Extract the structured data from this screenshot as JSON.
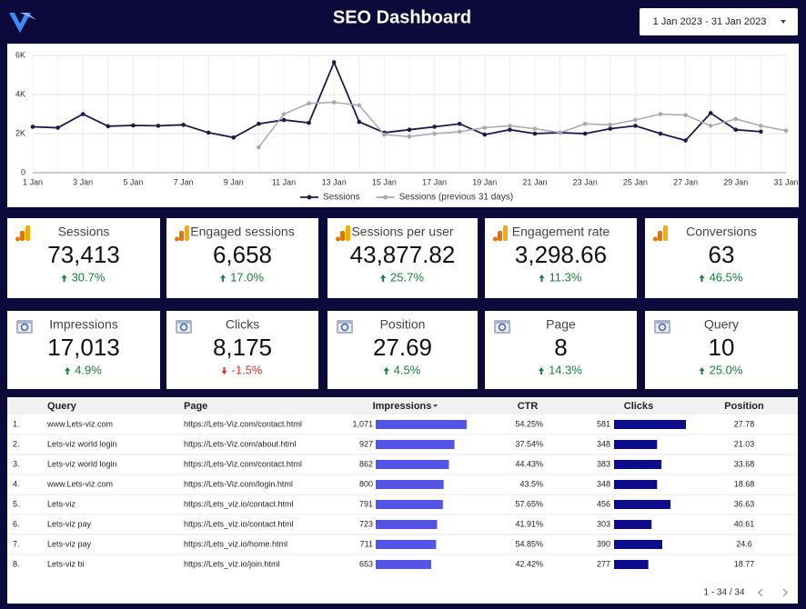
{
  "header": {
    "title": "SEO Dashboard",
    "date_range": "1 Jan 2023 - 31 Jan 2023"
  },
  "chart_data": {
    "type": "line",
    "x": [
      "1 Jan",
      null,
      "3 Jan",
      null,
      "5 Jan",
      null,
      "7 Jan",
      null,
      "9 Jan",
      null,
      "11 Jan",
      null,
      "13 Jan",
      null,
      "15 Jan",
      null,
      "17 Jan",
      null,
      "19 Jan",
      null,
      "21 Jan",
      null,
      "23 Jan",
      null,
      "25 Jan",
      null,
      "27 Jan",
      null,
      "29 Jan",
      null,
      "31 Jan"
    ],
    "series": [
      {
        "name": "Sessions",
        "color": "#1a1a4e",
        "values": [
          2350,
          2300,
          3000,
          2380,
          2420,
          2400,
          2450,
          2050,
          1800,
          2500,
          2700,
          2550,
          5650,
          2600,
          2050,
          2200,
          2350,
          2500,
          1950,
          2200,
          2000,
          2050,
          2000,
          2250,
          2400,
          2000,
          1650,
          3050,
          2200,
          2100,
          null
        ]
      },
      {
        "name": "Sessions (previous 31 days)",
        "color": "#a8a8b0",
        "values": [
          null,
          null,
          null,
          null,
          null,
          null,
          null,
          null,
          null,
          1300,
          3000,
          3550,
          3600,
          3450,
          1950,
          1850,
          2000,
          2100,
          2300,
          2400,
          2250,
          2050,
          2500,
          2450,
          2700,
          3000,
          2950,
          2400,
          2750,
          2400,
          2150
        ]
      }
    ],
    "ylim": [
      0,
      6000
    ],
    "yticks": [
      0,
      {
        "value": 2000,
        "label": "2K"
      },
      {
        "value": 4000,
        "label": "4K"
      },
      {
        "value": 6000,
        "label": "6K"
      }
    ],
    "grid": true,
    "legend": "bottom"
  },
  "kpis": [
    {
      "label": "Sessions",
      "value": "73,413",
      "change": "30.7%",
      "trend": "up",
      "source": "analytics"
    },
    {
      "label": "Engaged sessions",
      "value": "6,658",
      "change": "17.0%",
      "trend": "up",
      "source": "analytics"
    },
    {
      "label": "Sessions per user",
      "value": "43,877.82",
      "change": "25.7%",
      "trend": "up",
      "source": "analytics"
    },
    {
      "label": "Engagement rate",
      "value": "3,298.66",
      "change": "11.3%",
      "trend": "up",
      "source": "analytics"
    },
    {
      "label": "Conversions",
      "value": "63",
      "change": "46.5%",
      "trend": "up",
      "source": "analytics"
    },
    {
      "label": "Impressions",
      "value": "17,013",
      "change": "4.9%",
      "trend": "up",
      "source": "search"
    },
    {
      "label": "Clicks",
      "value": "8,175",
      "change": "-1.5%",
      "trend": "down",
      "source": "search"
    },
    {
      "label": "Position",
      "value": "27.69",
      "change": "4.5%",
      "trend": "up",
      "source": "search"
    },
    {
      "label": "Page",
      "value": "8",
      "change": "14.3%",
      "trend": "up",
      "source": "search"
    },
    {
      "label": "Query",
      "value": "10",
      "change": "25.0%",
      "trend": "up",
      "source": "search"
    }
  ],
  "table": {
    "columns": [
      "Query",
      "Page",
      "Impressions",
      "CTR",
      "Clicks",
      "Position"
    ],
    "rows": [
      {
        "index": "1.",
        "query": "www.Lets-viz.com",
        "page": "https://Lets-Viz.com/contact.html",
        "impressions": {
          "value": 1071,
          "label": "1,071"
        },
        "ctr": "54.25%",
        "clicks": 581,
        "position": 27.78
      },
      {
        "index": "2.",
        "query": "Lets-viz world login",
        "page": "https://Lets-Viz.com/about.html",
        "impressions": 927,
        "ctr": "37.54%",
        "clicks": 348,
        "position": 21.03
      },
      {
        "index": "3.",
        "query": "Lets-viz world login",
        "page": "https://Lets-Viz.com/contact.html",
        "impressions": 862,
        "ctr": "44.43%",
        "clicks": 383,
        "position": 33.68
      },
      {
        "index": "4.",
        "query": "www.Lets-viz.com",
        "page": "https://Lets-Viz.com/login.html",
        "impressions": 800,
        "ctr": "43.5%",
        "clicks": 348,
        "position": 18.68
      },
      {
        "index": "5.",
        "query": "Lets-viz",
        "page": "https://Lets_viz.io/contact.html",
        "impressions": 791,
        "ctr": "57.65%",
        "clicks": 456,
        "position": 36.63
      },
      {
        "index": "6.",
        "query": "Lets-viz pay",
        "page": "https://Lets_viz.io/contact.html",
        "impressions": 723,
        "ctr": "41.91%",
        "clicks": 303,
        "position": 40.61
      },
      {
        "index": "7.",
        "query": "Lets-viz pay",
        "page": "https://Lets_viz.io/home.html",
        "impressions": 711,
        "ctr": "54.85%",
        "clicks": 390,
        "position": 24.6
      },
      {
        "index": "8.",
        "query": "Lets-viz bi",
        "page": "https://Lets_viz.io/join.html",
        "impressions": 653,
        "ctr": "42.42%",
        "clicks": 277,
        "position": 18.77
      }
    ],
    "pagination": "1 - 34 / 34"
  }
}
